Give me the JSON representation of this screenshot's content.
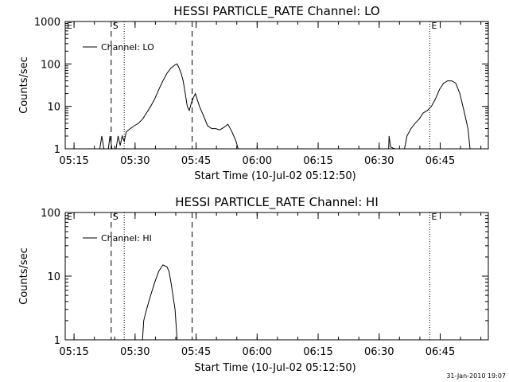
{
  "footer": {
    "timestamp": "31-Jan-2010 19:07"
  },
  "colors": {
    "background": "#ffffff",
    "ink": "#000000"
  },
  "chart_data": [
    {
      "type": "line",
      "title": "HESSI PARTICLE_RATE Channel: LO",
      "xlabel": "Start Time (10-Jul-02 05:12:50)",
      "ylabel": "Counts/sec",
      "yscale": "log",
      "ylim": [
        1,
        1000
      ],
      "yticks": [
        1,
        10,
        100,
        1000
      ],
      "ytick_labels": [
        "1",
        "10",
        "100",
        "1000"
      ],
      "xlim_minutes": [
        0,
        104
      ],
      "xticks_minutes": [
        2.17,
        17.17,
        32.17,
        47.17,
        62.17,
        77.17,
        92.17
      ],
      "xtick_labels": [
        "05:15",
        "05:30",
        "05:45",
        "06:00",
        "06:15",
        "06:30",
        "06:45"
      ],
      "legend": {
        "position": "top-left",
        "entries": [
          "Channel: LO"
        ]
      },
      "markers": [
        {
          "label": "E",
          "x": 0,
          "style": "dotted"
        },
        {
          "label": "S",
          "x": 11.3,
          "style": "dashed"
        },
        {
          "label": "",
          "x": 14.5,
          "style": "dotted"
        },
        {
          "label": "",
          "x": 31.2,
          "style": "dashed"
        },
        {
          "label": "E",
          "x": 89.6,
          "style": "dotted"
        },
        {
          "label": "",
          "x": 104,
          "style": "dotted"
        }
      ],
      "series": [
        {
          "segments": [
            [
              [
                8.5,
                1
              ],
              [
                9,
                2
              ],
              [
                9.5,
                1
              ],
              [
                10.6,
                1
              ],
              [
                11,
                2
              ],
              [
                11.5,
                1
              ],
              [
                12.5,
                1
              ],
              [
                13,
                2
              ],
              [
                13.5,
                1.2
              ],
              [
                14,
                2
              ],
              [
                14.5,
                1.5
              ],
              [
                15,
                2.5
              ],
              [
                16,
                3
              ],
              [
                17,
                3.5
              ],
              [
                18,
                4
              ],
              [
                19,
                5
              ],
              [
                20,
                7
              ],
              [
                21,
                10
              ],
              [
                22,
                15
              ],
              [
                23,
                25
              ],
              [
                24,
                40
              ],
              [
                25,
                60
              ],
              [
                26,
                80
              ],
              [
                27,
                95
              ],
              [
                27.5,
                100
              ],
              [
                28,
                80
              ],
              [
                28.5,
                60
              ],
              [
                29,
                40
              ],
              [
                29.5,
                20
              ],
              [
                30,
                10
              ],
              [
                30.5,
                8
              ],
              [
                31,
                12
              ],
              [
                31.5,
                16
              ],
              [
                32,
                20
              ],
              [
                32.5,
                14
              ],
              [
                33,
                10
              ],
              [
                34,
                6
              ],
              [
                35,
                3.5
              ],
              [
                36,
                3
              ],
              [
                37,
                3
              ],
              [
                38,
                2.8
              ],
              [
                39,
                3.2
              ],
              [
                40,
                3.8
              ],
              [
                41,
                2.5
              ],
              [
                42,
                1.5
              ],
              [
                42.5,
                1
              ]
            ],
            [
              [
                79.5,
                1
              ],
              [
                79.6,
                2
              ],
              [
                80,
                1.1
              ],
              [
                81,
                1
              ],
              [
                82,
                1
              ],
              [
                83,
                1
              ],
              [
                83.4,
                1
              ],
              [
                84,
                2
              ],
              [
                85,
                3
              ],
              [
                86,
                4
              ],
              [
                87,
                5
              ],
              [
                88,
                7
              ],
              [
                89,
                8
              ],
              [
                90,
                10
              ],
              [
                91,
                15
              ],
              [
                92,
                25
              ],
              [
                93,
                35
              ],
              [
                94,
                40
              ],
              [
                95,
                40
              ],
              [
                96,
                35
              ],
              [
                97,
                20
              ],
              [
                98,
                8
              ],
              [
                99,
                3
              ],
              [
                99.5,
                1
              ]
            ]
          ]
        }
      ]
    },
    {
      "type": "line",
      "title": "HESSI PARTICLE_RATE Channel: HI",
      "xlabel": "Start Time (10-Jul-02 05:12:50)",
      "ylabel": "Counts/sec",
      "yscale": "log",
      "ylim": [
        1,
        100
      ],
      "yticks": [
        1,
        10,
        100
      ],
      "ytick_labels": [
        "1",
        "10",
        "100"
      ],
      "xlim_minutes": [
        0,
        104
      ],
      "xticks_minutes": [
        2.17,
        17.17,
        32.17,
        47.17,
        62.17,
        77.17,
        92.17
      ],
      "xtick_labels": [
        "05:15",
        "05:30",
        "05:45",
        "06:00",
        "06:15",
        "06:30",
        "06:45"
      ],
      "legend": {
        "position": "top-left",
        "entries": [
          "Channel: HI"
        ]
      },
      "markers": [
        {
          "label": "E",
          "x": 0,
          "style": "dotted"
        },
        {
          "label": "S",
          "x": 11.3,
          "style": "dashed"
        },
        {
          "label": "",
          "x": 14.5,
          "style": "dotted"
        },
        {
          "label": "",
          "x": 31.2,
          "style": "dashed"
        },
        {
          "label": "E",
          "x": 89.6,
          "style": "dotted"
        },
        {
          "label": "",
          "x": 104,
          "style": "dotted"
        }
      ],
      "series": [
        {
          "segments": [
            [
              [
                19,
                1
              ],
              [
                19.3,
                2
              ],
              [
                20,
                3
              ],
              [
                21,
                5
              ],
              [
                22,
                8
              ],
              [
                23,
                12
              ],
              [
                24,
                15
              ],
              [
                25,
                14
              ],
              [
                25.5,
                12
              ],
              [
                26,
                8
              ],
              [
                27,
                3
              ],
              [
                27.5,
                1
              ]
            ]
          ]
        }
      ]
    }
  ]
}
